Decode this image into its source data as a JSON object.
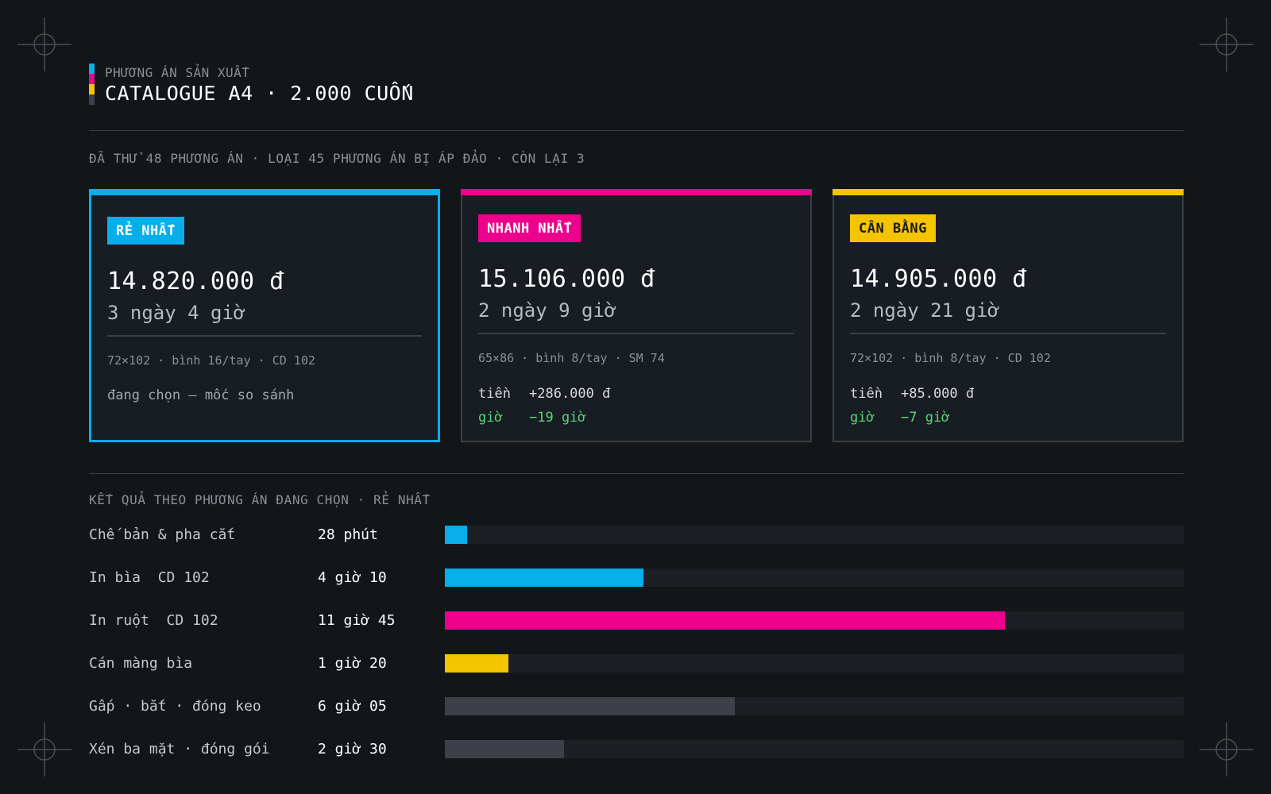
{
  "header": {
    "eyebrow": "PHƯƠNG ÁN SẢN XUẤT",
    "title": "CATALOGUE A4 · 2.000 CUỐN",
    "cmyk_colors": [
      "#07aeea",
      "#ec008c",
      "#f5c400",
      "#3d4048"
    ]
  },
  "summary": "ĐÃ THỬ 48 PHƯƠNG ÁN · LOẠI 45 PHƯƠNG ÁN BỊ ÁP ĐẢO · CÒN LẠI 3",
  "options": [
    {
      "badge": "RẺ NHẤT",
      "color": "#07aeea",
      "badge_text_color": "#ffffff",
      "selected": true,
      "price": "14.820.000 đ",
      "duration": "3 ngày 4 giờ",
      "spec": "72×102 · bình 16/tay · CD 102",
      "note": "đang chọn — mốc so sánh"
    },
    {
      "badge": "NHANH NHẤT",
      "color": "#ec008c",
      "badge_text_color": "#ffffff",
      "selected": false,
      "price": "15.106.000 đ",
      "duration": "2 ngày 9 giờ",
      "spec": "65×86 · bình 8/tay · SM 74",
      "money_key": "tiền",
      "money_delta": "+286.000 đ",
      "time_key": "giờ",
      "time_delta": "−19 giờ"
    },
    {
      "badge": "CÂN BẰNG",
      "color": "#f5c400",
      "badge_text_color": "#1a1a1a",
      "selected": false,
      "price": "14.905.000 đ",
      "duration": "2 ngày 21 giờ",
      "spec": "72×102 · bình 8/tay · CD 102",
      "money_key": "tiền",
      "money_delta": "+85.000 đ",
      "time_key": "giờ",
      "time_delta": "−7 giờ"
    }
  ],
  "results": {
    "title": "KẾT QUẢ THEO PHƯƠNG ÁN ĐANG CHỌN · RẺ NHẤT",
    "scale_minutes": 930,
    "steps": [
      {
        "label": "Chế bản & pha cắt",
        "value": "28 phút",
        "minutes": 28,
        "color": "#07aeea"
      },
      {
        "label": "In bìa  CD 102",
        "value": "4 giờ 10",
        "minutes": 250,
        "color": "#07aeea"
      },
      {
        "label": "In ruột  CD 102",
        "value": "11 giờ 45",
        "minutes": 705,
        "color": "#ec008c"
      },
      {
        "label": "Cán màng bìa",
        "value": "1 giờ 20",
        "minutes": 80,
        "color": "#f5c400"
      },
      {
        "label": "Gấp · bắt · đóng keo",
        "value": "6 giờ 05",
        "minutes": 365,
        "color": "#3d4048"
      },
      {
        "label": "Xén ba mặt · đóng gói",
        "value": "2 giờ 30",
        "minutes": 150,
        "color": "#3d4048"
      }
    ]
  }
}
